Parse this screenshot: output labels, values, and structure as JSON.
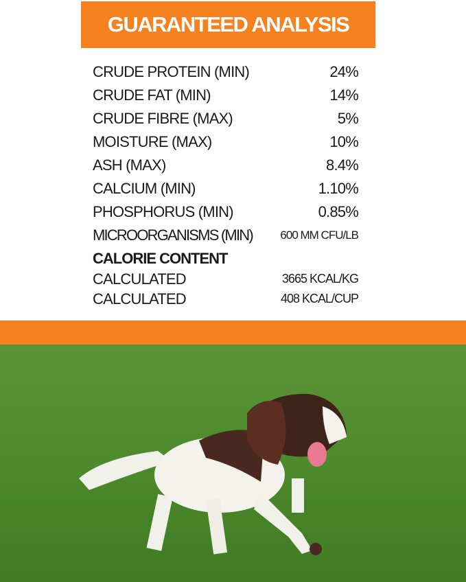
{
  "title": "GUARANTEED ANALYSIS",
  "analysis": [
    {
      "label": "CRUDE PROTEIN (MIN)",
      "value": "24%"
    },
    {
      "label": "CRUDE FAT (MIN)",
      "value": "14%"
    },
    {
      "label": "CRUDE FIBRE (MAX)",
      "value": "5%"
    },
    {
      "label": "MOISTURE (MAX)",
      "value": "10%"
    },
    {
      "label": "ASH (MAX)",
      "value": "8.4%"
    },
    {
      "label": "CALCIUM (MIN)",
      "value": "1.10%"
    },
    {
      "label": "PHOSPHORUS (MIN)",
      "value": "0.85%"
    },
    {
      "label": "MICROORGANISMS (MIN)",
      "value": "600 MM CFU/LB"
    }
  ],
  "calorie": {
    "heading": "CALORIE CONTENT",
    "rows": [
      {
        "label": "CALCULATED",
        "value": "3665 KCAL/KG"
      },
      {
        "label": "CALCULATED",
        "value": "408 KCAL/CUP"
      }
    ]
  },
  "colors": {
    "accent": "#f5821f",
    "grass": "#4f8a2e"
  },
  "photo": {
    "subject": "springer-spaniel-running-on-grass"
  }
}
